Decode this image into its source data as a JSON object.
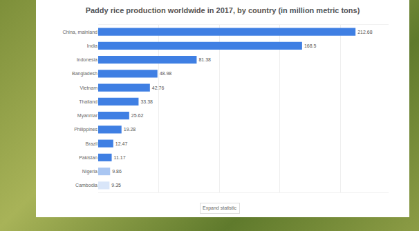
{
  "chart_data": {
    "type": "bar",
    "orientation": "horizontal",
    "title": "Paddy rice production worldwide in 2017, by country (in million metric tons)",
    "categories": [
      "China, mainland",
      "India",
      "Indonesia",
      "Bangladesh",
      "Vietnam",
      "Thailand",
      "Myanmar",
      "Philippines",
      "Brazil",
      "Pakistan",
      "Nigeria",
      "Cambodia"
    ],
    "values": [
      212.68,
      168.5,
      81.38,
      48.98,
      42.76,
      33.38,
      25.62,
      19.28,
      12.47,
      11.17,
      9.86,
      9.35
    ],
    "colors": [
      "#3f7fe3",
      "#3f7fe3",
      "#3f7fe3",
      "#3f7fe3",
      "#3f7fe3",
      "#3f7fe3",
      "#3f7fe3",
      "#3f7fe3",
      "#3f7fe3",
      "#3f7fe3",
      "#a9c6f2",
      "#d9e6f9"
    ],
    "xlim": [
      0,
      240
    ],
    "xticks": [
      0,
      50,
      100,
      150,
      200
    ],
    "grid": true,
    "data_labels": true,
    "tick_labels": "y",
    "annotations": [
      "Expand statistic"
    ]
  }
}
